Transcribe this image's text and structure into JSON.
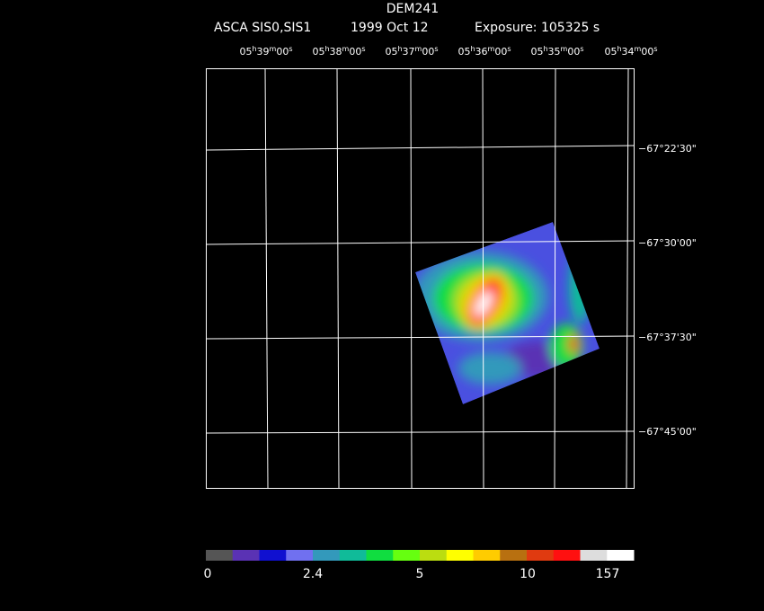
{
  "header": {
    "object": "DEM241",
    "instrument": "ASCA SIS0,SIS1",
    "date": "1999 Oct 12",
    "exposure": "Exposure: 105325 s"
  },
  "ra_labels": [
    [
      "05",
      "h",
      "39",
      "m",
      "00",
      "s"
    ],
    [
      "05",
      "h",
      "38",
      "m",
      "00",
      "s"
    ],
    [
      "05",
      "h",
      "37",
      "m",
      "00",
      "s"
    ],
    [
      "05",
      "h",
      "36",
      "m",
      "00",
      "s"
    ],
    [
      "05",
      "h",
      "35",
      "m",
      "00",
      "s"
    ],
    [
      "05",
      "h",
      "34",
      "m",
      "00",
      "s"
    ]
  ],
  "dec_labels": [
    "−67°22'30\"",
    "−67°30'00\"",
    "−67°37'30\"",
    "−67°45'00\""
  ],
  "colorbar": {
    "colors": [
      "#555555",
      "#5a32b4",
      "#1010d0",
      "#7070f0",
      "#3399bb",
      "#10bb99",
      "#10dd40",
      "#66ff10",
      "#bbdd10",
      "#ffff00",
      "#ffcc00",
      "#b87010",
      "#e03a10",
      "#ff1010",
      "#dddddd",
      "#ffffff"
    ],
    "labels": [
      "0",
      "2.4",
      "5",
      "10",
      "157"
    ]
  }
}
